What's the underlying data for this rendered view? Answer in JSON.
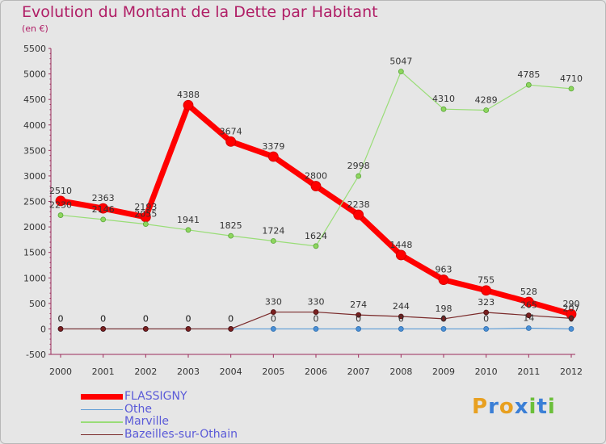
{
  "header": {
    "title": "Evolution du Montant de la Dette par Habitant",
    "subtitle": "(en €)"
  },
  "logo": {
    "text": "Proxiti"
  },
  "chart_data": {
    "type": "line",
    "title": "Evolution du Montant de la Dette par Habitant",
    "subtitle": "(en €)",
    "xlabel": "",
    "ylabel": "",
    "x": [
      "2000",
      "2001",
      "2002",
      "2003",
      "2004",
      "2005",
      "2006",
      "2007",
      "2008",
      "2009",
      "2010",
      "2011",
      "2012"
    ],
    "ylim": [
      -500,
      5500
    ],
    "yticks": [
      -500,
      0,
      500,
      1000,
      1500,
      2000,
      2500,
      3000,
      3500,
      4000,
      4500,
      5000,
      5500
    ],
    "grid": false,
    "legend_position": "bottom-left",
    "series": [
      {
        "name": "FLASSIGNY",
        "color": "#ff0000",
        "values": [
          2510,
          2363,
          2193,
          4388,
          3674,
          3379,
          2800,
          2238,
          1448,
          963,
          755,
          528,
          290
        ],
        "labels": [
          "2510",
          "2363",
          "2193",
          "4388",
          "3674",
          "3379",
          "2800",
          "2238",
          "1448",
          "963",
          "755",
          "528",
          "290"
        ]
      },
      {
        "name": "Othe",
        "color": "#5b9bd5",
        "values": [
          0,
          0,
          0,
          0,
          0,
          0,
          0,
          0,
          0,
          0,
          0,
          14,
          0
        ],
        "labels": [
          "0",
          "0",
          "0",
          "0",
          "0",
          "0",
          "0",
          "0",
          "0",
          "0",
          "0",
          "14",
          "0"
        ]
      },
      {
        "name": "Marville",
        "color": "#99dd77",
        "values": [
          2230,
          2146,
          2055,
          1941,
          1825,
          1724,
          1624,
          2998,
          5047,
          4310,
          4289,
          4785,
          4710
        ],
        "labels": [
          "2230",
          "2146",
          "2055",
          "1941",
          "1825",
          "1724",
          "1624",
          "2998",
          "5047",
          "4310",
          "4289",
          "4785",
          "4710"
        ]
      },
      {
        "name": "Bazeilles-sur-Othain",
        "color": "#7a2a2a",
        "values": [
          0,
          0,
          0,
          0,
          0,
          330,
          330,
          274,
          244,
          198,
          323,
          265,
          207
        ],
        "labels": [
          "0",
          "0",
          "0",
          "0",
          "0",
          "330",
          "330",
          "274",
          "244",
          "198",
          "323",
          "265",
          "207"
        ]
      }
    ]
  }
}
